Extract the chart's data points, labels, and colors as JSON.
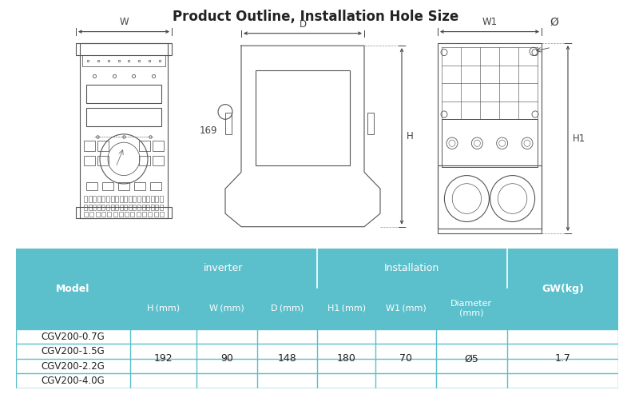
{
  "title": "Product Outline, Installation Hole Size",
  "title_fontsize": 12,
  "title_fontweight": "bold",
  "bg_color": "#ffffff",
  "table_header_color": "#5bbfcc",
  "table_border_color": "#5bbfcc",
  "table_models": [
    "CGV200-0.7G",
    "CGV200-1.5G",
    "CGV200-2.2G",
    "CGV200-4.0G"
  ],
  "table_values": {
    "H": "192",
    "W": "90",
    "D": "148",
    "H1": "180",
    "W1": "70",
    "Diameter": "Ø5",
    "GW": "1.7"
  },
  "col_labels": [
    "H (mm)",
    "W (mm)",
    "D (mm)",
    "H1 (mm)",
    "W1 (mm)",
    "Diameter\n(mm)",
    "GW(kg)"
  ],
  "dim_169": "169",
  "dim_W": "W",
  "dim_D": "D",
  "dim_W1": "W1",
  "dim_H": "H",
  "dim_H1": "H1",
  "dim_phi": "Ø",
  "line_color": "#555555",
  "dim_color": "#444444",
  "text_color": "#222222"
}
